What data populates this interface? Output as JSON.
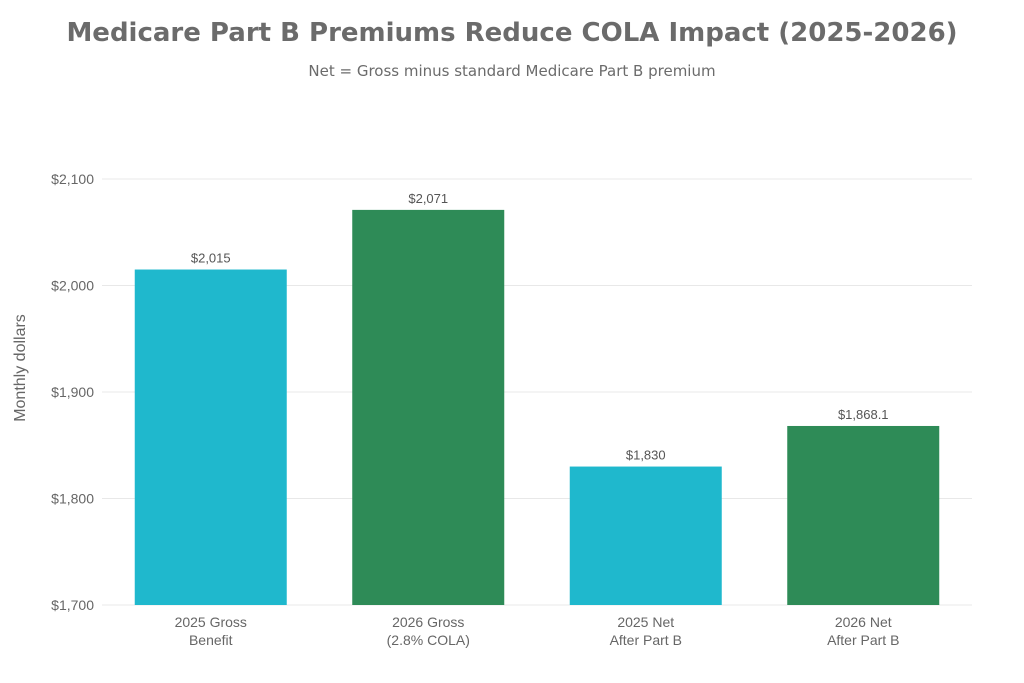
{
  "chart_data": {
    "type": "bar",
    "title": "Medicare Part B Premiums Reduce COLA Impact (2025-2026)",
    "subtitle": "Net = Gross minus standard Medicare Part B premium",
    "xlabel": "",
    "ylabel": "Monthly dollars",
    "ylim": [
      1700,
      2100
    ],
    "yticks": [
      1700,
      1800,
      1900,
      2000,
      2100
    ],
    "ytick_labels": [
      "$1,700",
      "$1,800",
      "$1,900",
      "$2,000",
      "$2,100"
    ],
    "grid": true,
    "categories": [
      [
        "2025 Gross",
        "Benefit"
      ],
      [
        "2026 Gross",
        "(2.8% COLA)"
      ],
      [
        "2025 Net",
        "After Part B"
      ],
      [
        "2026 Net",
        "After Part B"
      ]
    ],
    "values": [
      2015,
      2071,
      1830,
      1868.1
    ],
    "data_labels": [
      "$2,015",
      "$2,071",
      "$1,830",
      "$1,868.1"
    ],
    "colors": [
      "#1fb8cd",
      "#2e8b57",
      "#1fb8cd",
      "#2e8b57"
    ]
  }
}
